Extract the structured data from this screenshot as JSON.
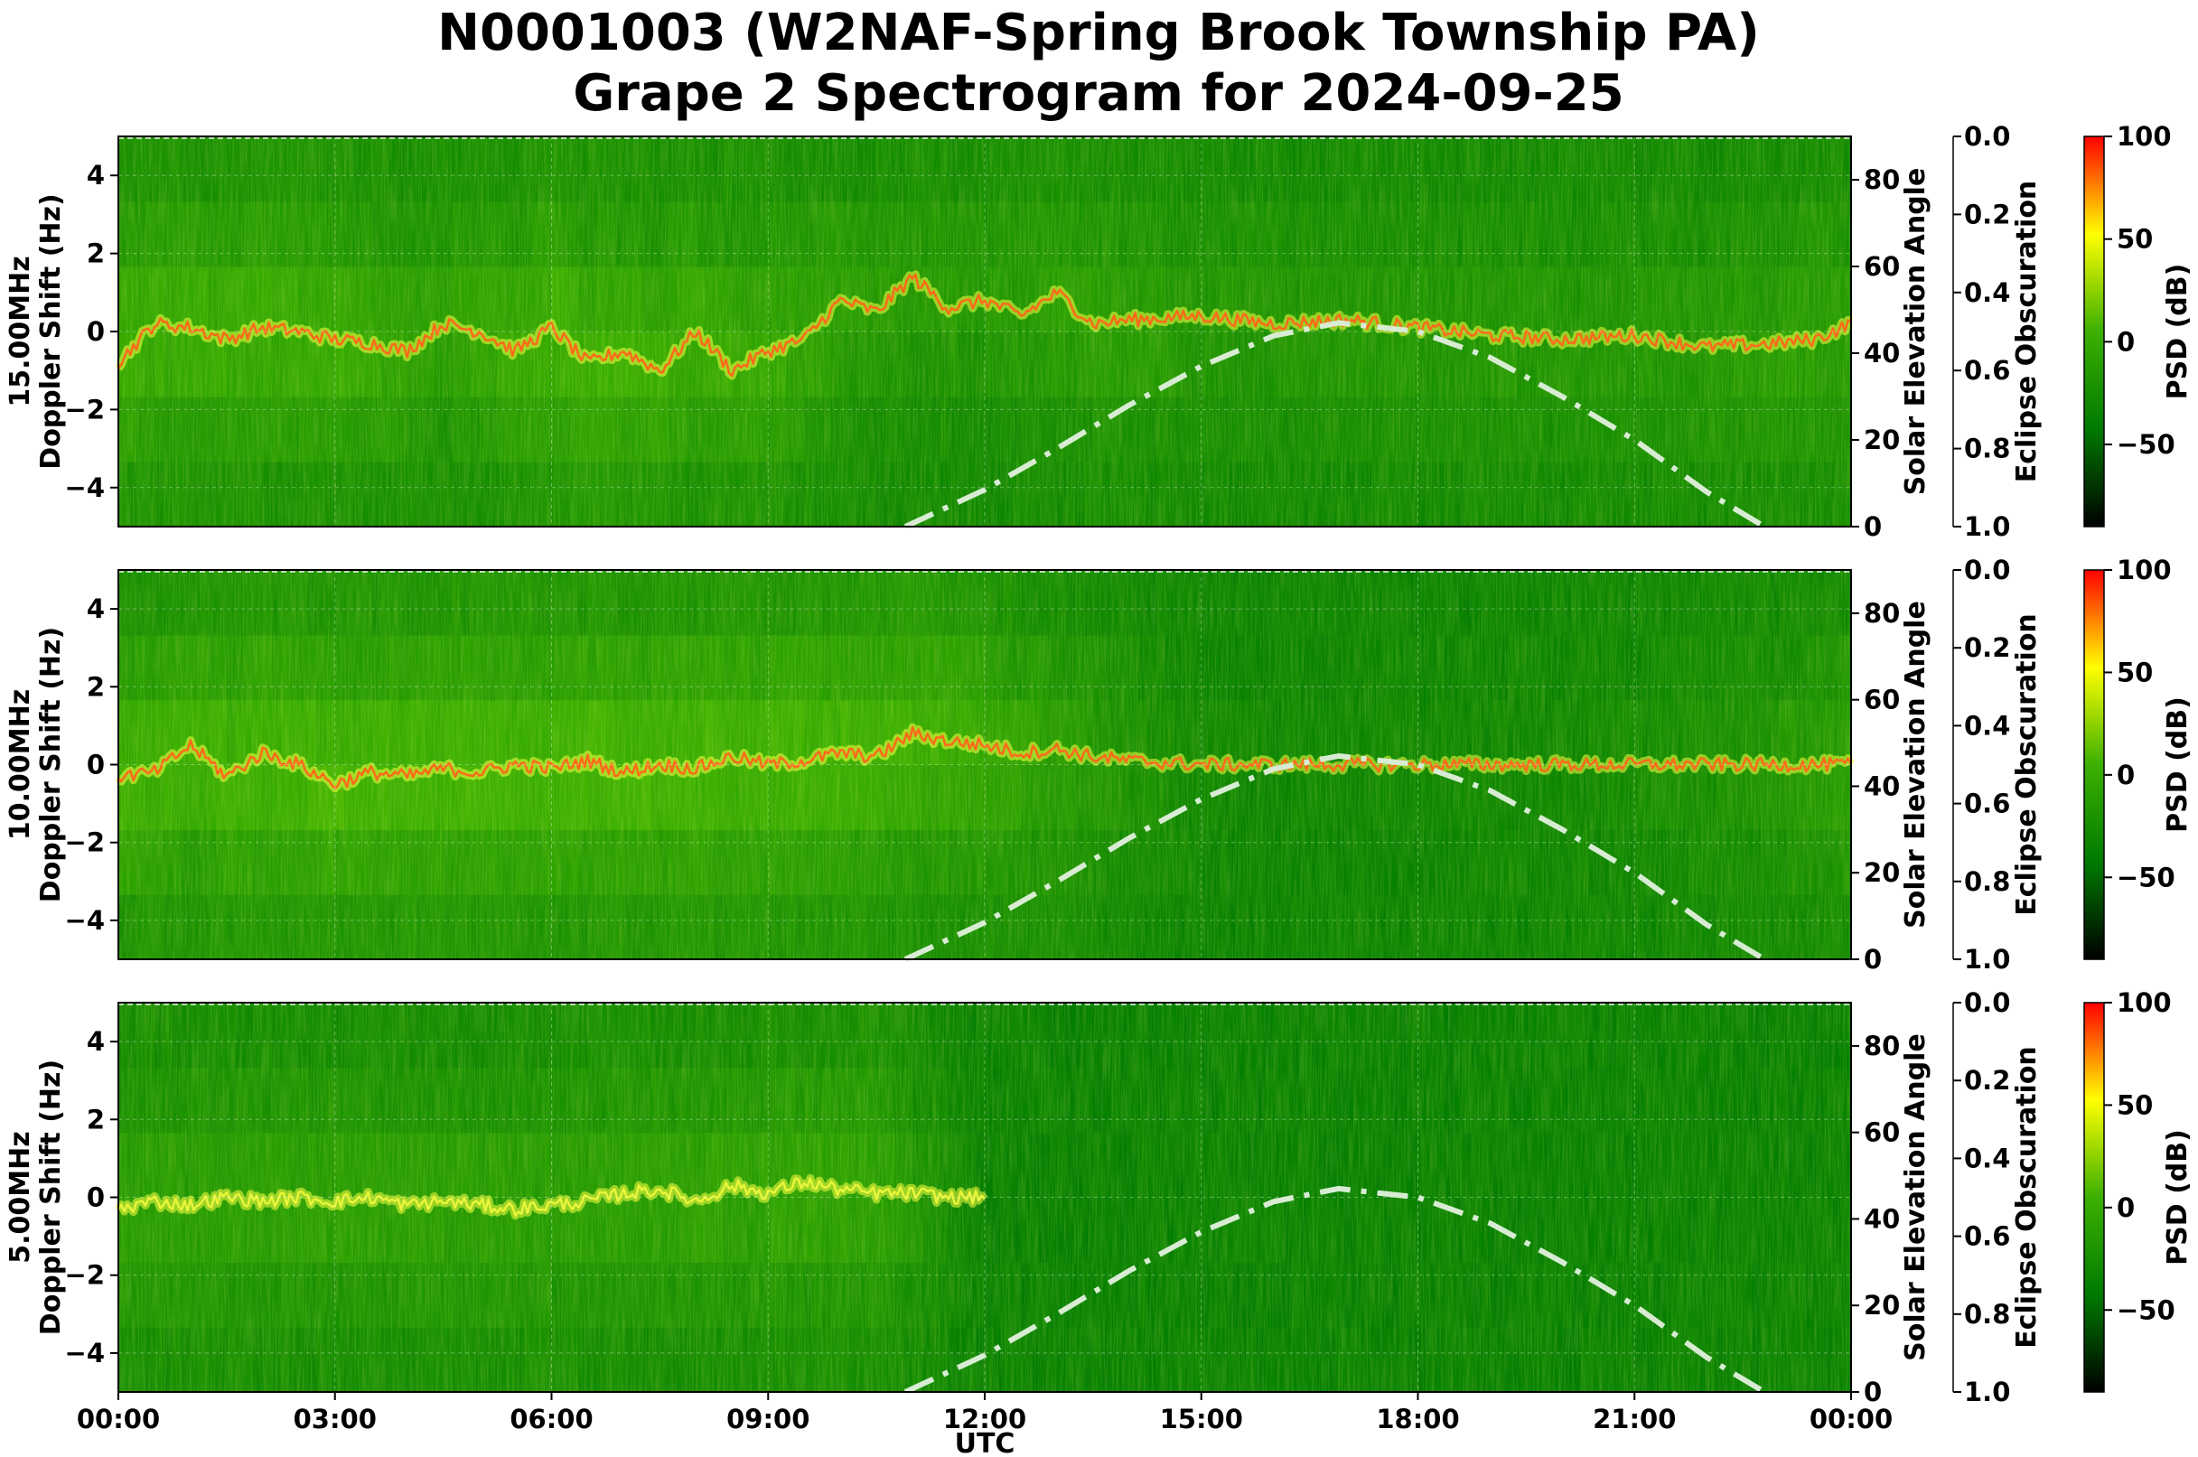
{
  "chart_data": {
    "type": "heatmap",
    "title": [
      "N0001003 (W2NAF-Spring Brook Township PA)",
      "Grape 2 Spectrogram for 2024-09-25"
    ],
    "xlabel": "UTC",
    "x_ticks": [
      "00:00",
      "03:00",
      "06:00",
      "09:00",
      "12:00",
      "15:00",
      "18:00",
      "21:00",
      "00:00"
    ],
    "x_range_hours": [
      0,
      24
    ],
    "y_range": [
      -5,
      5
    ],
    "y_ticks": [
      4,
      2,
      0,
      -2,
      -4
    ],
    "y_tick_labels": [
      "4",
      "2",
      "0",
      "−2",
      "−4"
    ],
    "elevation_range": [
      0,
      90
    ],
    "elevation_ticks": [
      0,
      20,
      40,
      60,
      80
    ],
    "elevation_label": "Solar Elevation Angle",
    "obscuration_range": [
      0.0,
      1.0
    ],
    "obscuration_ticks": [
      "0.0",
      "0.2",
      "0.4",
      "0.6",
      "0.8",
      "1.0"
    ],
    "obscuration_label": "Eclipse Obscuration",
    "colorbar": {
      "label": "PSD (dB)",
      "range": [
        -90,
        100
      ],
      "ticks": [
        100,
        50,
        0,
        -50
      ],
      "tick_labels": [
        "100",
        "50",
        "0",
        "−50"
      ],
      "colors": [
        "#000000",
        "#007a00",
        "#3cb000",
        "#ffff00",
        "#ff0000"
      ]
    },
    "grid": true,
    "solar_elevation": {
      "style": "dash-dot",
      "color": "#d7ecd2",
      "hours": [
        10.9,
        12,
        13,
        14,
        15,
        16,
        16.9,
        18,
        19,
        20,
        21,
        22,
        22.8
      ],
      "degrees": [
        0,
        8.5,
        18,
        28,
        37,
        44,
        47,
        45,
        39,
        30,
        20,
        8,
        0
      ]
    },
    "panels": [
      {
        "ylabel": [
          "15.00MHz",
          "Doppler Shift (Hz)"
        ],
        "signal_hours": [
          0,
          0.5,
          1,
          1.5,
          2,
          2.5,
          3,
          3.5,
          4,
          4.5,
          5,
          5.5,
          6,
          6.5,
          7,
          7.5,
          8,
          8.5,
          9,
          9.5,
          10,
          10.5,
          11,
          11.5,
          12,
          12.5,
          13,
          13.5,
          14,
          15,
          16,
          17,
          18,
          19,
          20,
          21,
          22,
          23,
          23.5,
          24
        ],
        "signal_doppler": [
          -0.8,
          0.2,
          0.1,
          -0.2,
          0.1,
          0.0,
          -0.2,
          -0.3,
          -0.5,
          0.2,
          0.0,
          -0.5,
          0.1,
          -0.8,
          -0.5,
          -1.0,
          0.0,
          -1.0,
          -0.5,
          -0.2,
          0.8,
          0.5,
          1.4,
          0.6,
          0.8,
          0.4,
          1.0,
          0.2,
          0.3,
          0.4,
          0.2,
          0.3,
          0.1,
          -0.1,
          -0.2,
          -0.1,
          -0.4,
          -0.3,
          -0.2,
          0.2
        ],
        "activity_hours": [
          0,
          3,
          4.5,
          6,
          9,
          10.5,
          12,
          13.5,
          15,
          18,
          21,
          24
        ],
        "activity": [
          0.5,
          0.5,
          0.35,
          0.55,
          0.45,
          0.3,
          0.25,
          0.35,
          0.25,
          0.25,
          0.25,
          0.35
        ]
      },
      {
        "ylabel": [
          "10.00MHz",
          "Doppler Shift (Hz)"
        ],
        "signal_hours": [
          0,
          0.5,
          1,
          1.5,
          2,
          2.5,
          3,
          3.5,
          4,
          4.5,
          5,
          5.5,
          6,
          6.5,
          7,
          7.5,
          8,
          8.5,
          9,
          9.5,
          10,
          10.5,
          11,
          11.5,
          12,
          12.5,
          13,
          13.5,
          14,
          15,
          16,
          17,
          18,
          19,
          20,
          21,
          22,
          23,
          24
        ],
        "signal_doppler": [
          -0.3,
          -0.2,
          0.5,
          -0.3,
          0.3,
          0.0,
          -0.5,
          -0.2,
          -0.3,
          -0.1,
          -0.2,
          0.0,
          -0.1,
          0.1,
          -0.2,
          0.0,
          -0.1,
          0.2,
          0.0,
          0.1,
          0.3,
          0.2,
          0.8,
          0.6,
          0.5,
          0.3,
          0.4,
          0.2,
          0.1,
          0.0,
          0.0,
          0.0,
          0.0,
          0.0,
          0.0,
          0.0,
          0.0,
          0.0,
          0.0
        ],
        "activity_hours": [
          0,
          3,
          6,
          9,
          11,
          12.5,
          14,
          15,
          18,
          21,
          22.5,
          24
        ],
        "activity": [
          0.55,
          0.6,
          0.6,
          0.6,
          0.55,
          0.4,
          0.2,
          0.05,
          0.05,
          0.1,
          0.2,
          0.35
        ]
      },
      {
        "ylabel": [
          "5.00MHz",
          "Doppler Shift (Hz)"
        ],
        "signal_hours": [
          0,
          0.5,
          1,
          1.5,
          2,
          2.5,
          3,
          3.5,
          4,
          4.5,
          5,
          5.5,
          6,
          6.5,
          7,
          7.5,
          8,
          8.5,
          9,
          9.5,
          10,
          10.5,
          11,
          11.5,
          12
        ],
        "signal_doppler": [
          -0.3,
          -0.1,
          -0.2,
          0.0,
          -0.1,
          0.0,
          -0.1,
          0.0,
          -0.2,
          -0.1,
          -0.2,
          -0.3,
          -0.2,
          -0.1,
          0.1,
          0.2,
          -0.1,
          0.3,
          0.1,
          0.4,
          0.2,
          0.1,
          0.1,
          0.0,
          0.0
        ],
        "activity_hours": [
          0,
          3,
          6,
          9,
          10.5,
          11.2,
          12,
          24
        ],
        "activity": [
          0.35,
          0.35,
          0.35,
          0.4,
          0.4,
          0.2,
          0.0,
          0.0
        ]
      }
    ]
  }
}
